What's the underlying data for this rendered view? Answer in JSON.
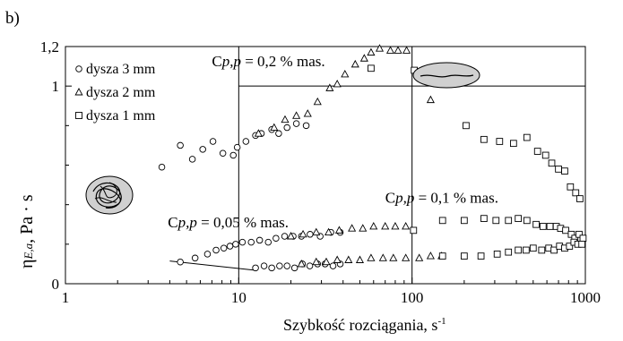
{
  "panel_label": "b)",
  "chart_data": {
    "type": "scatter",
    "xscale": "log",
    "xlim": [
      1,
      1000
    ],
    "ylim": [
      0,
      1.2
    ],
    "xlabel_main": "Szybkość rozciągania, s",
    "xlabel_sup": "-1",
    "ylabel_eta": "η",
    "ylabel_sub": "E,a",
    "ylabel_rest": ", Pa · s",
    "x_ticks": [
      {
        "value": 1,
        "label": "1"
      },
      {
        "value": 10,
        "label": "10"
      },
      {
        "value": 100,
        "label": "100"
      },
      {
        "value": 1000,
        "label": "1000"
      }
    ],
    "y_ticks": [
      {
        "value": 0,
        "label": "0"
      },
      {
        "value": 1,
        "label": "1"
      },
      {
        "value": 1.2,
        "label": "1,2"
      }
    ],
    "grid": false,
    "legend_position": "top-left",
    "annotation_c": "C",
    "annotation_pp": "p,p",
    "annotations": [
      {
        "value_text": " = 0,2 % mas.",
        "x": 7,
        "y": 1.1
      },
      {
        "value_text": " = 0,1 % mas.",
        "x": 70,
        "y": 0.41
      },
      {
        "value_text": " = 0,05 % mas.",
        "x": 3.9,
        "y": 0.285
      }
    ],
    "reference_lines": {
      "vertical": [
        {
          "x": 10,
          "y_from": 0,
          "y_to": 1.2
        },
        {
          "x": 100,
          "y_from": 0,
          "y_to": 1.2
        }
      ],
      "horizontal": [
        {
          "y": 1.0,
          "x_from": 10,
          "x_to": 1000
        }
      ],
      "slanted": [
        {
          "x1": 4,
          "y1": 0.115,
          "x2": 12.5,
          "y2": 0.068
        }
      ]
    },
    "series": [
      {
        "name": "dysza 3 mm",
        "marker": "circle",
        "groups": [
          [
            [
              3.6,
              0.59
            ],
            [
              4.6,
              0.7
            ],
            [
              5.4,
              0.63
            ],
            [
              6.2,
              0.68
            ],
            [
              7.1,
              0.72
            ],
            [
              8.1,
              0.66
            ],
            [
              9.3,
              0.65
            ],
            [
              9.8,
              0.69
            ],
            [
              11.0,
              0.72
            ],
            [
              12.5,
              0.75
            ],
            [
              13.5,
              0.76
            ],
            [
              15.5,
              0.78
            ],
            [
              17.0,
              0.76
            ],
            [
              19.0,
              0.79
            ],
            [
              21.5,
              0.81
            ],
            [
              24.5,
              0.8
            ]
          ],
          [
            [
              4.6,
              0.11
            ],
            [
              5.6,
              0.13
            ],
            [
              6.6,
              0.15
            ],
            [
              7.4,
              0.17
            ],
            [
              8.2,
              0.18
            ],
            [
              8.9,
              0.19
            ],
            [
              9.6,
              0.2
            ],
            [
              10.5,
              0.21
            ],
            [
              11.8,
              0.21
            ],
            [
              13.2,
              0.22
            ],
            [
              14.8,
              0.21
            ],
            [
              16.4,
              0.23
            ],
            [
              18.4,
              0.24
            ],
            [
              20.6,
              0.24
            ],
            [
              23.0,
              0.24
            ],
            [
              25.8,
              0.25
            ],
            [
              29.5,
              0.24
            ],
            [
              34.0,
              0.26
            ],
            [
              38.5,
              0.26
            ]
          ],
          [
            [
              12.5,
              0.08
            ],
            [
              14.0,
              0.09
            ],
            [
              15.5,
              0.08
            ],
            [
              17.2,
              0.09
            ],
            [
              19.0,
              0.09
            ],
            [
              21.0,
              0.08
            ],
            [
              23.3,
              0.1
            ],
            [
              25.7,
              0.09
            ],
            [
              28.5,
              0.1
            ],
            [
              31.5,
              0.1
            ],
            [
              35.0,
              0.09
            ],
            [
              38.5,
              0.1
            ]
          ]
        ]
      },
      {
        "name": "dysza 2 mm",
        "marker": "triangle",
        "groups": [
          [
            [
              13.0,
              0.76
            ],
            [
              16.0,
              0.79
            ],
            [
              18.5,
              0.83
            ],
            [
              21.5,
              0.85
            ],
            [
              25.0,
              0.86
            ],
            [
              28.5,
              0.92
            ],
            [
              33.5,
              0.99
            ],
            [
              37.0,
              1.01
            ],
            [
              41.0,
              1.06
            ],
            [
              47.0,
              1.11
            ],
            [
              53.0,
              1.14
            ],
            [
              58.0,
              1.17
            ],
            [
              65.0,
              1.19
            ],
            [
              75.0,
              1.18
            ],
            [
              83.0,
              1.18
            ],
            [
              93.0,
              1.18
            ],
            [
              128.0,
              0.93
            ]
          ],
          [
            [
              20.0,
              0.24
            ],
            [
              23.5,
              0.25
            ],
            [
              28.0,
              0.26
            ],
            [
              33.0,
              0.26
            ],
            [
              38.0,
              0.27
            ],
            [
              45.0,
              0.28
            ],
            [
              52.0,
              0.28
            ],
            [
              60.0,
              0.29
            ],
            [
              70.0,
              0.29
            ],
            [
              80.0,
              0.29
            ],
            [
              92.0,
              0.29
            ]
          ],
          [
            [
              23.0,
              0.1
            ],
            [
              28.0,
              0.11
            ],
            [
              32.0,
              0.11
            ],
            [
              37.0,
              0.12
            ],
            [
              43.0,
              0.12
            ],
            [
              50.0,
              0.12
            ],
            [
              58.0,
              0.13
            ],
            [
              68.0,
              0.13
            ],
            [
              78.0,
              0.13
            ],
            [
              92.0,
              0.13
            ],
            [
              110.0,
              0.13
            ],
            [
              128.0,
              0.14
            ],
            [
              148.0,
              0.14
            ]
          ]
        ]
      },
      {
        "name": "dysza 1 mm",
        "marker": "square",
        "groups": [
          [
            [
              58.0,
              1.09
            ],
            [
              103.0,
              1.08
            ],
            [
              152.0,
              1.1
            ],
            [
              205.0,
              0.8
            ],
            [
              260.0,
              0.73
            ],
            [
              320.0,
              0.72
            ],
            [
              385.0,
              0.71
            ],
            [
              460.0,
              0.74
            ],
            [
              530.0,
              0.67
            ],
            [
              590.0,
              0.65
            ],
            [
              640.0,
              0.61
            ],
            [
              700.0,
              0.58
            ],
            [
              760.0,
              0.57
            ],
            [
              820.0,
              0.49
            ],
            [
              880.0,
              0.46
            ],
            [
              930.0,
              0.43
            ]
          ],
          [
            [
              102.0,
              0.27
            ],
            [
              150.0,
              0.32
            ],
            [
              200.0,
              0.32
            ],
            [
              260.0,
              0.33
            ],
            [
              305.0,
              0.32
            ],
            [
              360.0,
              0.32
            ],
            [
              410.0,
              0.33
            ],
            [
              460.0,
              0.32
            ],
            [
              520.0,
              0.3
            ],
            [
              570.0,
              0.29
            ],
            [
              625.0,
              0.29
            ],
            [
              680.0,
              0.29
            ],
            [
              720.0,
              0.28
            ],
            [
              770.0,
              0.27
            ],
            [
              830.0,
              0.25
            ],
            [
              870.0,
              0.23
            ],
            [
              920.0,
              0.25
            ],
            [
              970.0,
              0.23
            ]
          ],
          [
            [
              150.0,
              0.14
            ],
            [
              200.0,
              0.14
            ],
            [
              250.0,
              0.14
            ],
            [
              310.0,
              0.15
            ],
            [
              360.0,
              0.16
            ],
            [
              410.0,
              0.17
            ],
            [
              455.0,
              0.17
            ],
            [
              500.0,
              0.18
            ],
            [
              560.0,
              0.17
            ],
            [
              615.0,
              0.18
            ],
            [
              660.0,
              0.17
            ],
            [
              710.0,
              0.19
            ],
            [
              760.0,
              0.18
            ],
            [
              810.0,
              0.19
            ],
            [
              860.0,
              0.21
            ],
            [
              905.0,
              0.2
            ],
            [
              955.0,
              0.2
            ]
          ]
        ]
      }
    ]
  }
}
